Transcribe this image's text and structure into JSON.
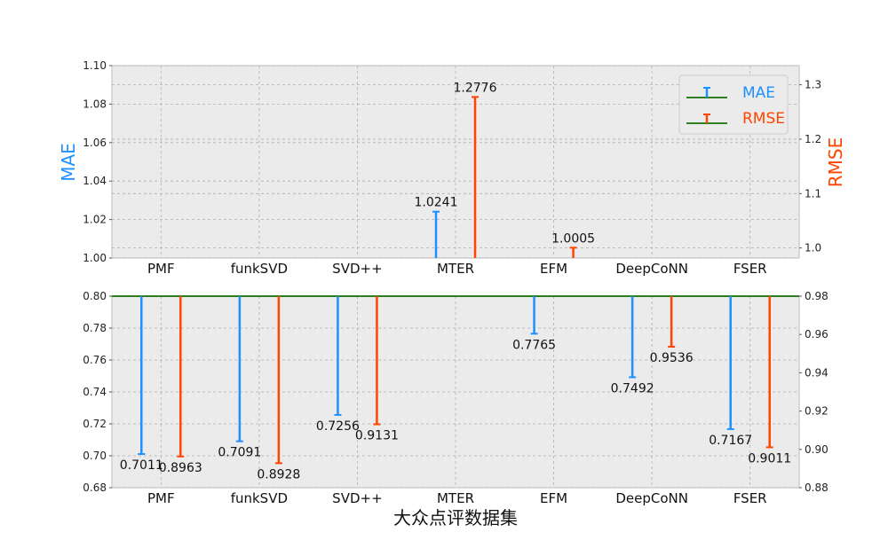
{
  "chart_data": {
    "type": "bar",
    "xlabel": "大众点评数据集",
    "categories": [
      "PMF",
      "funkSVD",
      "SVD++",
      "MTER",
      "EFM",
      "DeepCoNN",
      "FSER"
    ],
    "colors": {
      "mae": "#1e90ff",
      "rmse": "#ff4500",
      "baseline": "#2e7d1f"
    },
    "legend": {
      "placement": "top-right",
      "mae_label": "MAE",
      "rmse_label": "RMSE"
    },
    "grid": true,
    "top_panel": {
      "left_ylabel": "MAE",
      "right_ylabel": "RMSE",
      "left_ylim": [
        1.0,
        1.1
      ],
      "right_ylim": [
        0.9815,
        1.3352
      ],
      "left_ticks": [
        "1.00",
        "1.02",
        "1.04",
        "1.06",
        "1.08",
        "1.10"
      ],
      "right_ticks": [
        "1.0",
        "1.1",
        "1.2",
        "1.3"
      ],
      "mae": [
        null,
        null,
        null,
        1.0241,
        null,
        null,
        null
      ],
      "rmse": [
        null,
        null,
        null,
        1.2776,
        1.0005,
        null,
        null
      ],
      "mae_labels": [
        "",
        "",
        "",
        "1.0241",
        "",
        "",
        ""
      ],
      "rmse_labels": [
        "",
        "",
        "",
        "1.2776",
        "1.0005",
        "",
        ""
      ]
    },
    "bottom_panel": {
      "left_ylim": [
        0.68,
        0.8
      ],
      "right_ylim": [
        0.88,
        0.98
      ],
      "left_ticks": [
        "0.68",
        "0.70",
        "0.72",
        "0.74",
        "0.76",
        "0.78",
        "0.80"
      ],
      "right_ticks": [
        "0.88",
        "0.90",
        "0.92",
        "0.94",
        "0.96",
        "0.98"
      ],
      "mae": [
        0.7011,
        0.7091,
        0.7256,
        null,
        0.7765,
        0.7492,
        0.7167
      ],
      "rmse": [
        0.8963,
        0.8928,
        0.9131,
        null,
        null,
        0.9536,
        0.9011
      ],
      "mae_labels": [
        "0.7011",
        "0.7091",
        "0.7256",
        "",
        "0.7765",
        "0.7492",
        "0.7167"
      ],
      "rmse_labels": [
        "0.8963",
        "0.8928",
        "0.9131",
        "",
        "",
        "0.9536",
        "0.9011"
      ]
    }
  }
}
